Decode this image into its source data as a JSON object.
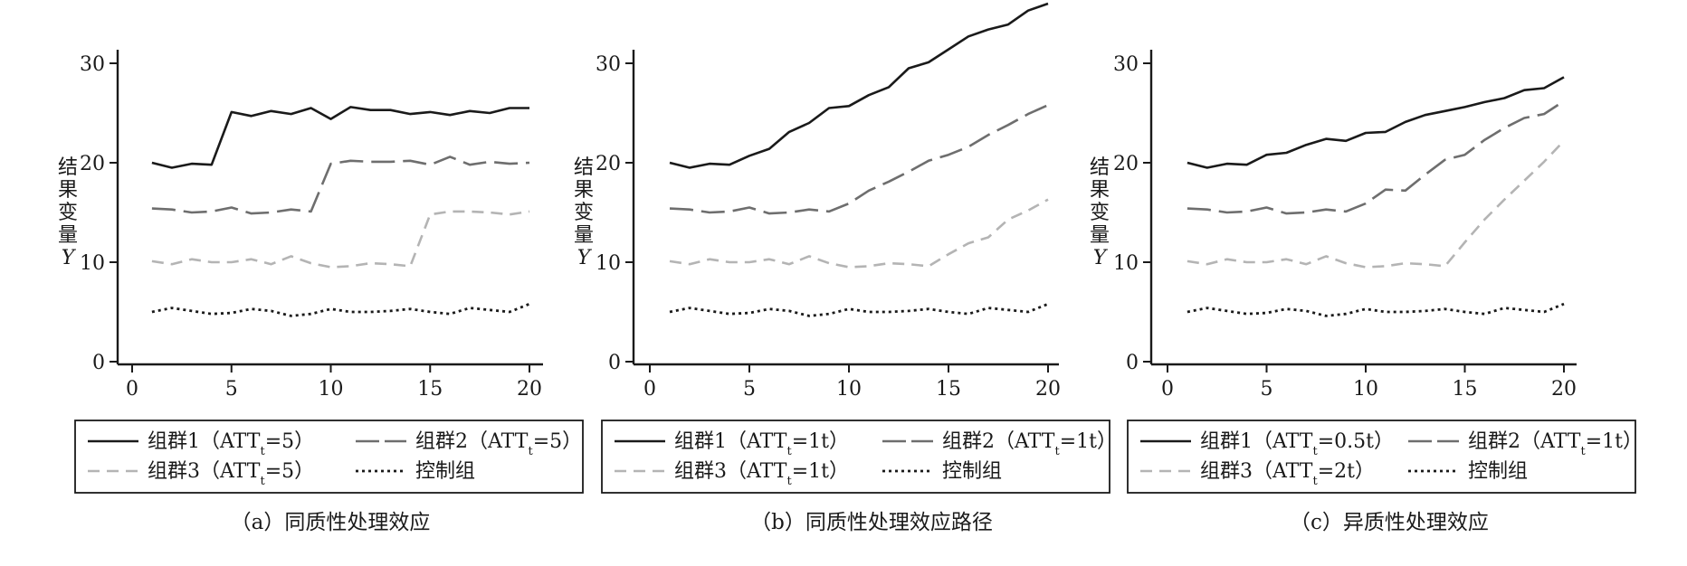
{
  "chart_data": [
    {
      "type": "line",
      "title": "",
      "caption": "（a）同质性处理效应",
      "ylabel": [
        "结",
        "果",
        "变",
        "量",
        "Y"
      ],
      "xlabel": "",
      "xlim": [
        0,
        20
      ],
      "ylim": [
        0,
        30
      ],
      "x_ticks": [
        0,
        5,
        10,
        15,
        20
      ],
      "y_ticks": [
        0,
        10,
        20,
        30
      ],
      "grid": false,
      "legend_position": "bottom",
      "series": [
        {
          "name": "组群1（ATT_t=5）",
          "legend_parts": [
            "组群1（ATT",
            "t",
            "=5）"
          ],
          "style": "solid",
          "color": "#1a1a1a",
          "x": [
            1,
            2,
            3,
            4,
            5,
            6,
            7,
            8,
            9,
            10,
            11,
            12,
            13,
            14,
            15,
            16,
            17,
            18,
            19,
            20
          ],
          "values": [
            20,
            19.5,
            19.9,
            19.8,
            25.1,
            24.7,
            25.2,
            24.9,
            25.5,
            24.4,
            25.6,
            25.3,
            25.3,
            24.9,
            25.1,
            24.8,
            25.2,
            25.0,
            25.5,
            25.5
          ]
        },
        {
          "name": "组群2（ATT_t=5）",
          "legend_parts": [
            "组群2（ATT",
            "t",
            "=5）"
          ],
          "style": "longdash",
          "color": "#6e6e6e",
          "x": [
            1,
            2,
            3,
            4,
            5,
            6,
            7,
            8,
            9,
            10,
            11,
            12,
            13,
            14,
            15,
            16,
            17,
            18,
            19,
            20
          ],
          "values": [
            15.4,
            15.3,
            15.0,
            15.1,
            15.5,
            14.9,
            15.0,
            15.3,
            15.1,
            19.9,
            20.2,
            20.1,
            20.1,
            20.2,
            19.8,
            20.6,
            19.8,
            20.1,
            19.9,
            20.0
          ]
        },
        {
          "name": "组群3（ATT_t=5）",
          "legend_parts": [
            "组群3（ATT",
            "t",
            "=5）"
          ],
          "style": "dash",
          "color": "#b4b4b4",
          "x": [
            1,
            2,
            3,
            4,
            5,
            6,
            7,
            8,
            9,
            10,
            11,
            12,
            13,
            14,
            15,
            16,
            17,
            18,
            19,
            20
          ],
          "values": [
            10.1,
            9.8,
            10.3,
            10.0,
            10.0,
            10.3,
            9.8,
            10.6,
            9.9,
            9.5,
            9.6,
            9.9,
            9.8,
            9.6,
            14.8,
            15.1,
            15.1,
            15.0,
            14.8,
            15.1
          ]
        },
        {
          "name": "控制组",
          "legend_parts": [
            "控制组",
            "",
            ""
          ],
          "style": "dotted",
          "color": "#1a1a1a",
          "x": [
            1,
            2,
            3,
            4,
            5,
            6,
            7,
            8,
            9,
            10,
            11,
            12,
            13,
            14,
            15,
            16,
            17,
            18,
            19,
            20
          ],
          "values": [
            5.0,
            5.4,
            5.1,
            4.8,
            4.9,
            5.3,
            5.1,
            4.6,
            4.8,
            5.3,
            5.0,
            5.0,
            5.1,
            5.3,
            5.0,
            4.8,
            5.4,
            5.2,
            5.0,
            5.8
          ]
        }
      ]
    },
    {
      "type": "line",
      "title": "",
      "caption": "（b）同质性处理效应路径",
      "ylabel": [
        "结",
        "果",
        "变",
        "量",
        "Y"
      ],
      "xlabel": "",
      "xlim": [
        0,
        20
      ],
      "ylim": [
        0,
        36
      ],
      "x_ticks": [
        0,
        5,
        10,
        15,
        20
      ],
      "y_ticks": [
        0,
        10,
        20,
        30
      ],
      "grid": false,
      "legend_position": "bottom",
      "series": [
        {
          "name": "组群1（ATT_t=1t）",
          "legend_parts": [
            "组群1（ATT",
            "t",
            "=1t）"
          ],
          "style": "solid",
          "color": "#1a1a1a",
          "x": [
            1,
            2,
            3,
            4,
            5,
            6,
            7,
            8,
            9,
            10,
            11,
            12,
            13,
            14,
            15,
            16,
            17,
            18,
            19,
            20
          ],
          "values": [
            20,
            19.5,
            19.9,
            19.8,
            20.7,
            21.4,
            23.1,
            24.0,
            25.5,
            25.7,
            26.8,
            27.6,
            29.5,
            30.1,
            31.4,
            32.7,
            33.4,
            33.9,
            35.3,
            36.0
          ]
        },
        {
          "name": "组群2（ATT_t=1t）",
          "legend_parts": [
            "组群2（ATT",
            "t",
            "=1t）"
          ],
          "style": "longdash",
          "color": "#6e6e6e",
          "x": [
            1,
            2,
            3,
            4,
            5,
            6,
            7,
            8,
            9,
            10,
            11,
            12,
            13,
            14,
            15,
            16,
            17,
            18,
            19,
            20
          ],
          "values": [
            15.4,
            15.3,
            15.0,
            15.1,
            15.5,
            14.9,
            15.0,
            15.3,
            15.1,
            15.9,
            17.2,
            18.1,
            19.1,
            20.2,
            20.8,
            21.6,
            22.8,
            23.8,
            24.9,
            25.8
          ]
        },
        {
          "name": "组群3（ATT_t=1t）",
          "legend_parts": [
            "组群3（ATT",
            "t",
            "=1t）"
          ],
          "style": "dash",
          "color": "#b4b4b4",
          "x": [
            1,
            2,
            3,
            4,
            5,
            6,
            7,
            8,
            9,
            10,
            11,
            12,
            13,
            14,
            15,
            16,
            17,
            18,
            19,
            20
          ],
          "values": [
            10.1,
            9.8,
            10.3,
            10.0,
            10.0,
            10.3,
            9.8,
            10.6,
            9.9,
            9.5,
            9.6,
            9.9,
            9.8,
            9.6,
            10.8,
            11.9,
            12.5,
            14.3,
            15.2,
            16.3
          ]
        },
        {
          "name": "控制组",
          "legend_parts": [
            "控制组",
            "",
            ""
          ],
          "style": "dotted",
          "color": "#1a1a1a",
          "x": [
            1,
            2,
            3,
            4,
            5,
            6,
            7,
            8,
            9,
            10,
            11,
            12,
            13,
            14,
            15,
            16,
            17,
            18,
            19,
            20
          ],
          "values": [
            5.0,
            5.4,
            5.1,
            4.8,
            4.9,
            5.3,
            5.1,
            4.6,
            4.8,
            5.3,
            5.0,
            5.0,
            5.1,
            5.3,
            5.0,
            4.8,
            5.4,
            5.2,
            5.0,
            5.8
          ]
        }
      ]
    },
    {
      "type": "line",
      "title": "",
      "caption": "（c）异质性处理效应",
      "ylabel": [
        "结",
        "果",
        "变",
        "量",
        "Y"
      ],
      "xlabel": "",
      "xlim": [
        0,
        20
      ],
      "ylim": [
        0,
        30
      ],
      "x_ticks": [
        0,
        5,
        10,
        15,
        20
      ],
      "y_ticks": [
        0,
        10,
        20,
        30
      ],
      "grid": false,
      "legend_position": "bottom",
      "series": [
        {
          "name": "组群1（ATT_t=0.5t）",
          "legend_parts": [
            "组群1（ATT",
            "t",
            "=0.5t）"
          ],
          "style": "solid",
          "color": "#1a1a1a",
          "x": [
            1,
            2,
            3,
            4,
            5,
            6,
            7,
            8,
            9,
            10,
            11,
            12,
            13,
            14,
            15,
            16,
            17,
            18,
            19,
            20
          ],
          "values": [
            20,
            19.5,
            19.9,
            19.8,
            20.8,
            21.0,
            21.8,
            22.4,
            22.2,
            23.0,
            23.1,
            24.1,
            24.8,
            25.2,
            25.6,
            26.1,
            26.5,
            27.3,
            27.5,
            28.6
          ]
        },
        {
          "name": "组群2（ATT_t=1t）",
          "legend_parts": [
            "组群2（ATT",
            "t",
            "=1t）"
          ],
          "style": "longdash",
          "color": "#6e6e6e",
          "x": [
            1,
            2,
            3,
            4,
            5,
            6,
            7,
            8,
            9,
            10,
            11,
            12,
            13,
            14,
            15,
            16,
            17,
            18,
            19,
            20
          ],
          "values": [
            15.4,
            15.3,
            15.0,
            15.1,
            15.5,
            14.9,
            15.0,
            15.3,
            15.1,
            15.9,
            17.3,
            17.2,
            18.8,
            20.3,
            20.8,
            22.3,
            23.5,
            24.5,
            24.9,
            26.2
          ]
        },
        {
          "name": "组群3（ATT_t=2t）",
          "legend_parts": [
            "组群3（ATT",
            "t",
            "=2t）"
          ],
          "style": "dash",
          "color": "#b4b4b4",
          "x": [
            1,
            2,
            3,
            4,
            5,
            6,
            7,
            8,
            9,
            10,
            11,
            12,
            13,
            14,
            15,
            16,
            17,
            18,
            19,
            20
          ],
          "values": [
            10.1,
            9.8,
            10.3,
            10.0,
            10.0,
            10.3,
            9.8,
            10.6,
            9.9,
            9.5,
            9.6,
            9.9,
            9.8,
            9.6,
            12.0,
            14.3,
            16.3,
            18.2,
            20.1,
            22.2
          ]
        },
        {
          "name": "控制组",
          "legend_parts": [
            "控制组",
            "",
            ""
          ],
          "style": "dotted",
          "color": "#1a1a1a",
          "x": [
            1,
            2,
            3,
            4,
            5,
            6,
            7,
            8,
            9,
            10,
            11,
            12,
            13,
            14,
            15,
            16,
            17,
            18,
            19,
            20
          ],
          "values": [
            5.0,
            5.4,
            5.1,
            4.8,
            4.9,
            5.3,
            5.1,
            4.6,
            4.8,
            5.3,
            5.0,
            5.0,
            5.1,
            5.3,
            5.0,
            4.8,
            5.4,
            5.2,
            5.0,
            5.8
          ]
        }
      ]
    }
  ]
}
